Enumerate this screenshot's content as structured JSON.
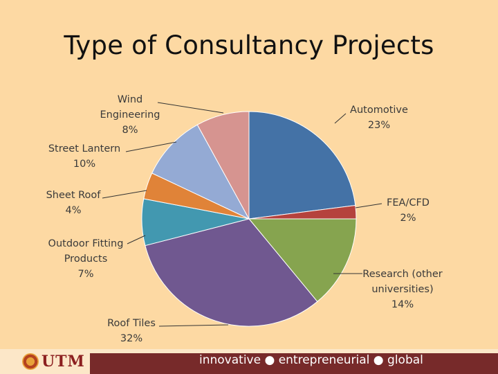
{
  "title": "Type of Consultancy Projects",
  "chart_data": {
    "type": "pie",
    "title": "Type of Consultancy Projects",
    "slices": [
      {
        "name": "Automotive",
        "display": [
          "Automotive",
          "23%"
        ],
        "value": 23,
        "color": "#4472a6"
      },
      {
        "name": "FEA/CFD",
        "display": [
          "FEA/CFD",
          "2%"
        ],
        "value": 2,
        "color": "#b5423d"
      },
      {
        "name": "Research (other universities)",
        "display": [
          "Research (other",
          "universities)",
          "14%"
        ],
        "value": 14,
        "color": "#86a44f"
      },
      {
        "name": "Roof Tiles",
        "display": [
          "Roof Tiles",
          "32%"
        ],
        "value": 32,
        "color": "#705890"
      },
      {
        "name": "Outdoor Fitting Products",
        "display": [
          "Outdoor Fitting",
          "Products",
          "7%"
        ],
        "value": 7,
        "color": "#4298b0"
      },
      {
        "name": "Sheet Roof",
        "display": [
          "Sheet Roof",
          "4%"
        ],
        "value": 4,
        "color": "#e08338"
      },
      {
        "name": "Street Lantern",
        "display": [
          "Street Lantern",
          "10%"
        ],
        "value": 10,
        "color": "#94aad4"
      },
      {
        "name": "Wind Engineering",
        "display": [
          "Wind",
          "Engineering",
          "8%"
        ],
        "value": 8,
        "color": "#d69490"
      }
    ],
    "start_angle_deg": 0,
    "direction": "clockwise",
    "legend": "none",
    "data_labels": "outside-with-leader-lines"
  },
  "footer": {
    "logo_text": "UTM",
    "tagline": "innovative ● entrepreneurial ● global"
  }
}
